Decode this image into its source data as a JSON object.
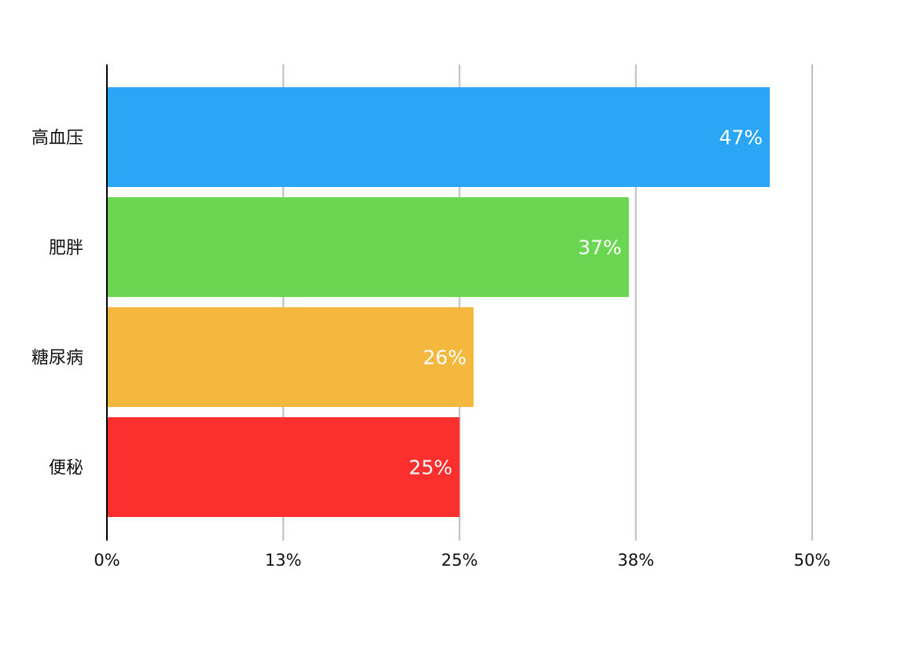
{
  "chart_data": {
    "type": "bar",
    "orientation": "horizontal",
    "categories": [
      "高血压",
      "肥胖",
      "糖尿病",
      "便秘"
    ],
    "values": [
      47,
      37,
      26,
      25
    ],
    "value_labels": [
      "47%",
      "37%",
      "26%",
      "25%"
    ],
    "colors": [
      "#2ba6f7",
      "#6ad651",
      "#f5b83f",
      "#fb2f2d"
    ],
    "xlim": [
      0,
      50
    ],
    "x_ticks": [
      0,
      12.5,
      25,
      37.5,
      50
    ],
    "x_tick_labels": [
      "0%",
      "13%",
      "25%",
      "38%",
      "50%"
    ],
    "grid": true,
    "legend": "none",
    "title": "",
    "xlabel": "",
    "ylabel": ""
  }
}
